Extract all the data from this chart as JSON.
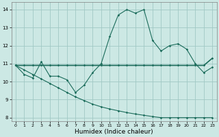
{
  "title": "",
  "xlabel": "Humidex (Indice chaleur)",
  "bg_color": "#cce8e4",
  "grid_color": "#a0c8c4",
  "line_color": "#1a6b5a",
  "xlim": [
    -0.5,
    23.5
  ],
  "ylim": [
    7.8,
    14.4
  ],
  "yticks": [
    8,
    9,
    10,
    11,
    12,
    13,
    14
  ],
  "xticks": [
    0,
    1,
    2,
    3,
    4,
    5,
    6,
    7,
    8,
    9,
    10,
    11,
    12,
    13,
    14,
    15,
    16,
    17,
    18,
    19,
    20,
    21,
    22,
    23
  ],
  "x": [
    0,
    1,
    2,
    3,
    4,
    5,
    6,
    7,
    8,
    9,
    10,
    11,
    12,
    13,
    14,
    15,
    16,
    17,
    18,
    19,
    20,
    21,
    22,
    23
  ],
  "line1": [
    10.9,
    10.4,
    10.2,
    11.1,
    10.3,
    10.3,
    10.1,
    9.4,
    9.8,
    10.5,
    11.0,
    12.5,
    13.7,
    14.0,
    13.8,
    14.0,
    12.3,
    11.7,
    12.0,
    12.1,
    11.8,
    11.0,
    10.5,
    10.8
  ],
  "line2": [
    10.9,
    10.9,
    10.9,
    10.9,
    10.9,
    10.9,
    10.9,
    10.9,
    10.9,
    10.9,
    10.9,
    10.9,
    10.9,
    10.9,
    10.9,
    10.9,
    10.9,
    10.9,
    10.9,
    10.9,
    10.9,
    10.9,
    10.9,
    11.3
  ],
  "line3": [
    10.9,
    10.65,
    10.4,
    10.15,
    9.9,
    9.65,
    9.4,
    9.15,
    8.95,
    8.75,
    8.6,
    8.48,
    8.38,
    8.28,
    8.2,
    8.13,
    8.06,
    8.0,
    8.0,
    8.0,
    8.0,
    8.0,
    8.0,
    8.0
  ]
}
